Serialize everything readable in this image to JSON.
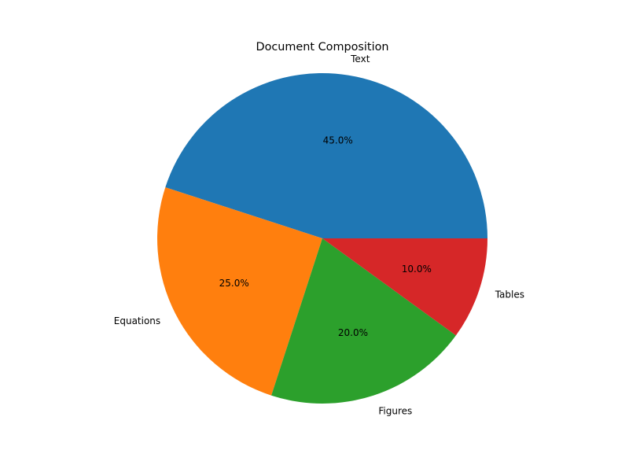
{
  "chart_data": {
    "type": "pie",
    "title": "Document Composition",
    "categories": [
      "Text",
      "Equations",
      "Figures",
      "Tables"
    ],
    "values": [
      45.0,
      25.0,
      20.0,
      10.0
    ],
    "percent_labels": [
      "45.0%",
      "25.0%",
      "20.0%",
      "10.0%"
    ],
    "colors": [
      "#1f77b4",
      "#ff7f0e",
      "#2ca02c",
      "#d62728"
    ],
    "start_angle_deg": 0,
    "direction": "counterclockwise",
    "legend": "none"
  }
}
